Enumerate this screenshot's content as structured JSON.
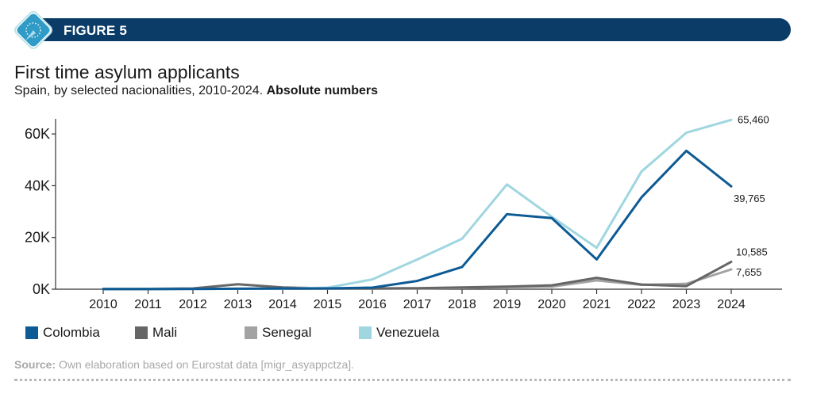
{
  "header": {
    "figure_label": "FIGURE 5"
  },
  "titles": {
    "title": "First time asylum applicants",
    "subtitle_plain": "Spain, by selected nacionalities, 2010-2024.",
    "subtitle_bold": "Absolute numbers"
  },
  "source": {
    "label": "Source:",
    "text": "Own elaboration based on Eurostat data [migr_asyappctza]."
  },
  "chart_data": {
    "type": "line",
    "title": "First time asylum applicants",
    "subtitle": "Spain, by selected nacionalities, 2010-2024. Absolute numbers",
    "x": [
      2010,
      2011,
      2012,
      2013,
      2014,
      2015,
      2016,
      2017,
      2018,
      2019,
      2020,
      2021,
      2022,
      2023,
      2024
    ],
    "y_ticks": [
      0,
      20000,
      40000,
      60000
    ],
    "y_tick_labels": [
      "0K",
      "20K",
      "40K",
      "60K"
    ],
    "ylim": [
      0,
      70000
    ],
    "grid": false,
    "legend_position": "bottom-left",
    "series": [
      {
        "name": "Colombia",
        "color": "#0d5a94",
        "values": [
          30,
          50,
          100,
          200,
          250,
          300,
          600,
          3200,
          8600,
          29000,
          27500,
          11500,
          35500,
          53500,
          39765
        ]
      },
      {
        "name": "Mali",
        "color": "#666666",
        "values": [
          100,
          150,
          300,
          1900,
          700,
          300,
          300,
          400,
          700,
          1000,
          1500,
          4400,
          1800,
          1200,
          10585
        ]
      },
      {
        "name": "Senegal",
        "color": "#a3a3a3",
        "values": [
          50,
          80,
          100,
          200,
          200,
          200,
          200,
          300,
          500,
          800,
          1000,
          3400,
          1700,
          2100,
          7655
        ]
      },
      {
        "name": "Venezuela",
        "color": "#9fd6e0",
        "values": [
          50,
          80,
          100,
          150,
          200,
          600,
          3800,
          11500,
          19500,
          40500,
          28000,
          16000,
          45500,
          60500,
          65460
        ]
      }
    ],
    "end_labels": [
      {
        "series": "Venezuela",
        "text": "65,460"
      },
      {
        "series": "Colombia",
        "text": "39,765"
      },
      {
        "series": "Mali",
        "text": "10,585"
      },
      {
        "series": "Senegal",
        "text": "7,655"
      }
    ]
  }
}
